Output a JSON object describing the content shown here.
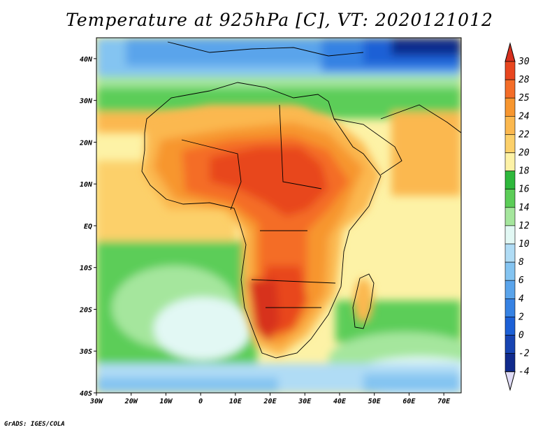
{
  "title": "Temperature at 925hPa [C], VT: 2020121012",
  "footer": "GrADS: IGES/COLA",
  "map": {
    "region": "Africa",
    "lon_range": [
      -30,
      75
    ],
    "lat_range": [
      -40,
      45
    ],
    "x_ticks": [
      "30W",
      "20W",
      "10W",
      "0",
      "10E",
      "20E",
      "30E",
      "40E",
      "50E",
      "60E",
      "70E"
    ],
    "y_ticks": [
      "40N",
      "30N",
      "20N",
      "10N",
      "EQ",
      "10S",
      "20S",
      "30S",
      "40S"
    ]
  },
  "colorbar": {
    "levels": [
      "30",
      "28",
      "25",
      "24",
      "22",
      "20",
      "18",
      "16",
      "14",
      "12",
      "10",
      "8",
      "6",
      "4",
      "2",
      "0",
      "-2",
      "-4"
    ],
    "colors": {
      "above_30": "#d7301f",
      "28-30": "#e8461f",
      "25-28": "#f46d28",
      "24-25": "#f7962f",
      "22-24": "#fbb84f",
      "20-22": "#fcd06a",
      "18-20": "#fdf2a6",
      "16-18": "#2eb83c",
      "14-16": "#5ccd58",
      "12-14": "#a5e69d",
      "10-12": "#e2f8f4",
      "8-10": "#b0dcf5",
      "6-8": "#84c4f1",
      "4-6": "#5aa4eb",
      "2-4": "#3682e3",
      "0-2": "#1c60d6",
      "-2-0": "#1744b2",
      "-4--2": "#102a8c",
      "below_-4": "#e0dcf6"
    }
  }
}
